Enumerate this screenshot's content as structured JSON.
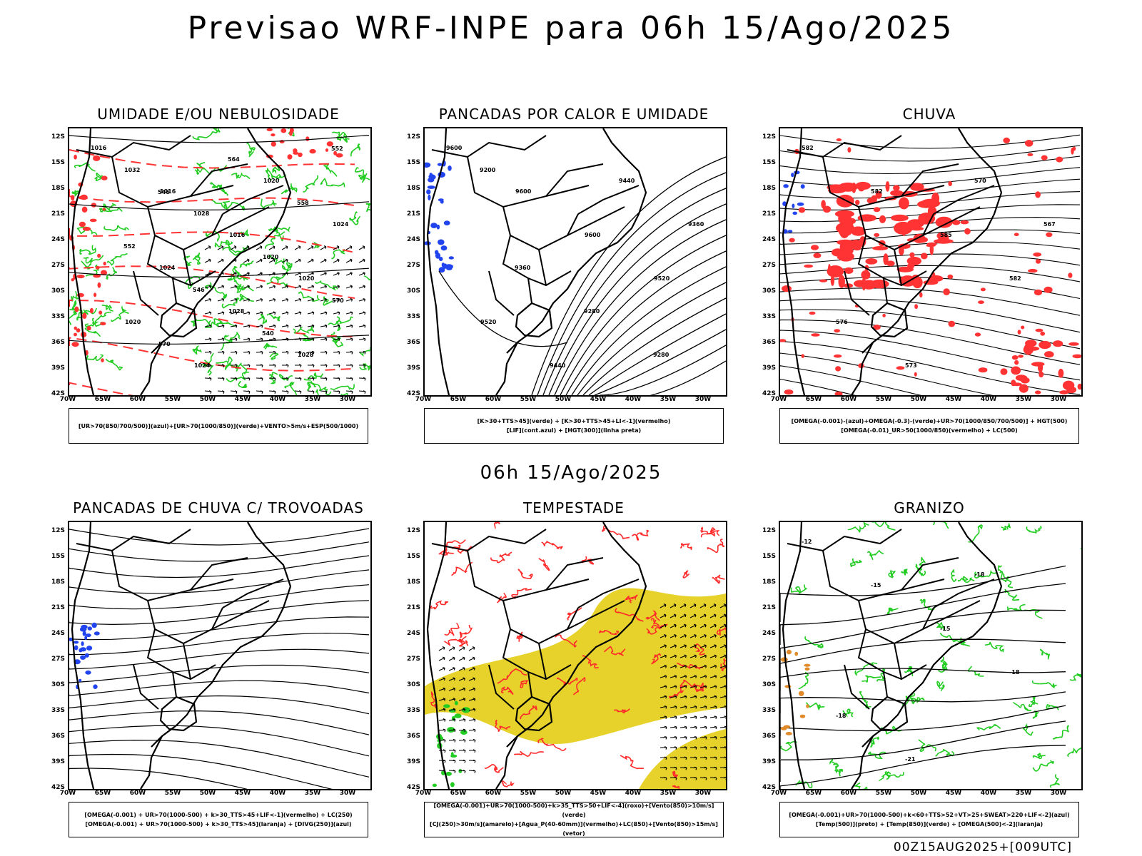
{
  "header": {
    "main_title": "Previsao WRF-INPE  para 06h 15/Ago/2025",
    "mid_title": "06h 15/Ago/2025",
    "footer": "00Z15AUG2025+[009UTC]"
  },
  "axes": {
    "lat_labels": [
      "12S",
      "15S",
      "18S",
      "21S",
      "24S",
      "27S",
      "30S",
      "33S",
      "36S",
      "39S",
      "42S"
    ],
    "lon_labels": [
      "70W",
      "65W",
      "60W",
      "55W",
      "50W",
      "45W",
      "40W",
      "35W",
      "30W"
    ]
  },
  "panels": [
    {
      "id": "umidade",
      "title": "UMIDADE E/OU NEBULOSIDADE",
      "legend": [
        "[UR>70(850/700/500)](azul)+[UR>70(1000/850)](verde)+VENTO>5m/s+ESP(500/1000)"
      ],
      "contour_labels": [
        "1016",
        "1016",
        "1016",
        "1020",
        "1020",
        "1024",
        "1020",
        "1024",
        "1024",
        "1028",
        "1028",
        "1032",
        "1028",
        "1020",
        "570",
        "570",
        "564",
        "558",
        "552",
        "546",
        "540",
        "552",
        "546"
      ],
      "style": "green-red"
    },
    {
      "id": "pancadas",
      "title": "PANCADAS POR CALOR E UMIDADE",
      "legend": [
        "[K>30+TTS>45](verde) + [K>30+TTS>45+LI<-1](vermelho)",
        "[LIF](cont.azul) + [HGT(300)](linha preta)"
      ],
      "contour_labels": [
        "9600",
        "9600",
        "9600",
        "9520",
        "9520",
        "9440",
        "9440",
        "9360",
        "9360",
        "9280",
        "9280",
        "9200"
      ],
      "style": "black"
    },
    {
      "id": "chuva",
      "title": "CHUVA",
      "legend": [
        "[OMEGA(-0.001)-(azul)+OMEGA(-0.3)-(verde)+UR>70(1000/850/700/500)] + HGT(500)",
        "[OMEGA(-0.01)_UR>50(1000/850)(vermelho) + LC(500)"
      ],
      "contour_labels": [
        "582",
        "582",
        "585",
        "582",
        "576",
        "573",
        "570",
        "567"
      ],
      "style": "red-stream"
    },
    {
      "id": "trovoadas",
      "title": "PANCADAS DE CHUVA C/ TROVOADAS",
      "legend": [
        "[OMEGA(-0.001) + UR>70(1000-500) + k>30_TTS>45+LIF<-1](vermelho) + LC(250)",
        "[OMEGA(-0.001) + UR>70(1000-500) + k>30_TTS>45](laranja) + [DIVG(250)](azul)"
      ],
      "contour_labels": [],
      "style": "stream"
    },
    {
      "id": "tempestade",
      "title": "TEMPESTADE",
      "legend": [
        "[OMEGA(-0.001)+UR>70(1000-500)+k>35_TTS>50+LIF<-4](roxo)+[Vento(850)>10m/s](verde)",
        "[CJ(250)>30m/s](amarelo)+[Agua_P(40-60mm)](vermelho)+LC(850)+[Vento(850)>15m/s](vetor)"
      ],
      "contour_labels": [],
      "style": "yellow"
    },
    {
      "id": "granizo",
      "title": "GRANIZO",
      "legend": [
        "[OMEGA(-0.001)+UR>70(1000-500)+k<60+TTS>52+VT>25+SWEAT>220+LIF<-2](azul)",
        "[Temp(500)](preto) + [Temp(850)](verde) + [OMEGA(500)<-2](laranja)"
      ],
      "contour_labels": [
        "-12",
        "-15",
        "-15",
        "-18",
        "-18",
        "-21",
        "-18"
      ],
      "style": "green-temp"
    }
  ],
  "colors": {
    "coast": "#000000",
    "green": "#22cc22",
    "red": "#ff3333",
    "blue": "#2244ee",
    "yellow": "#e6d22a",
    "stream": "#000000",
    "red_stream": "#ff2a2a"
  }
}
